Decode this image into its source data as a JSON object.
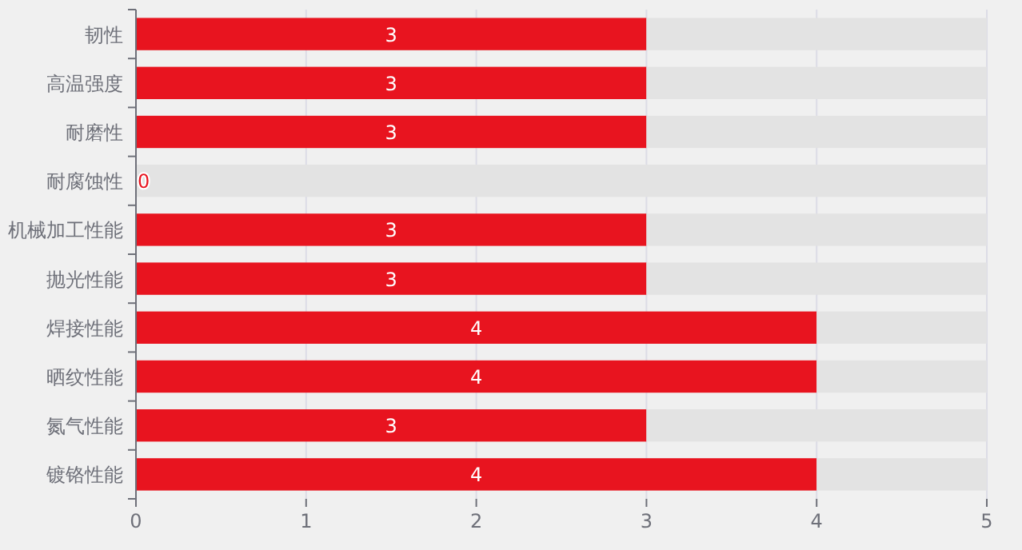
{
  "chart_data": {
    "type": "bar",
    "orientation": "horizontal",
    "stacked": true,
    "categories": [
      "韧性",
      "高温强度",
      "耐磨性",
      "耐腐蚀性",
      "机械加工性能",
      "抛光性能",
      "焊接性能",
      "晒纹性能",
      "氮气性能",
      "镀铬性能"
    ],
    "series": [
      {
        "color": "#e8141f",
        "values": [
          3,
          3,
          3,
          0,
          3,
          3,
          4,
          4,
          3,
          4
        ],
        "value_labels": [
          "3",
          "3",
          "3",
          null,
          "3",
          "3",
          "4",
          "4",
          "3",
          "4"
        ]
      },
      {
        "color": "#e3e3e3",
        "values": [
          2,
          2,
          2,
          5,
          2,
          2,
          1,
          1,
          2,
          1
        ]
      }
    ],
    "annotations": [
      {
        "text": "0",
        "x": 0,
        "y": "耐腐蚀性"
      }
    ],
    "xlim": [
      0,
      5
    ],
    "xticks": [
      0,
      1,
      2,
      3,
      4,
      5
    ],
    "grid": "x"
  }
}
